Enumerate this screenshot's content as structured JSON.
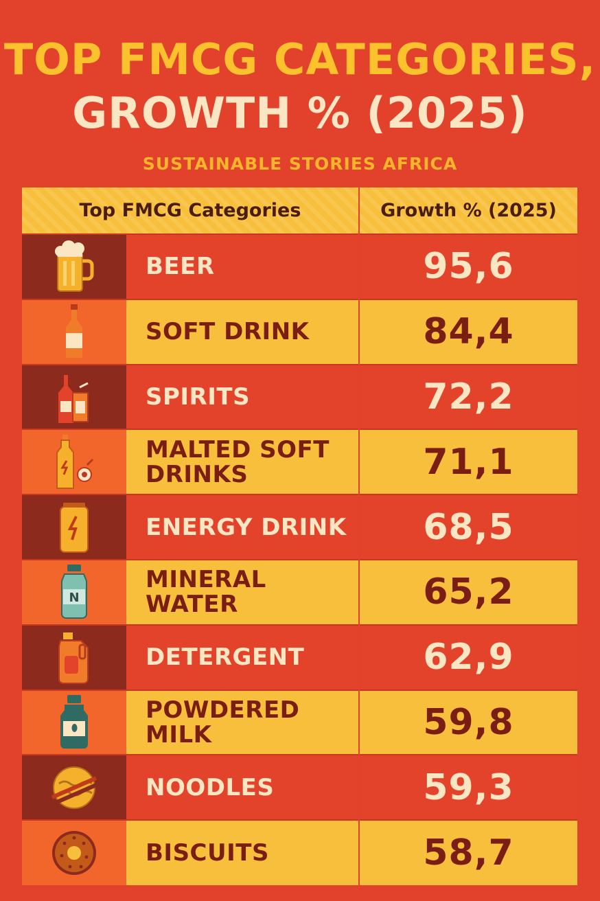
{
  "chart_data": {
    "type": "table",
    "title_line1": "TOP FMCG CATEGORIES,",
    "title_line2": "GROWTH % (2025)",
    "subtitle": "SUSTAINABLE STORIES AFRICA",
    "columns": [
      "Top FMCG Categories",
      "Growth % (2025)"
    ],
    "rows": [
      {
        "category": "BEER",
        "value": "95,6",
        "icon": "beer-mug-icon"
      },
      {
        "category": "SOFT DRINK",
        "value": "84,4",
        "icon": "bottle-icon"
      },
      {
        "category": "SPIRITS",
        "value": "72,2",
        "icon": "spirits-bottle-glass-icon"
      },
      {
        "category": "MALTED SOFT\nDRINKS",
        "value": "71,1",
        "icon": "malted-drink-bottle-icon"
      },
      {
        "category": "ENERGY DRINK",
        "value": "68,5",
        "icon": "energy-can-icon"
      },
      {
        "category": "MINERAL WATER",
        "value": "65,2",
        "icon": "water-bottle-icon"
      },
      {
        "category": "DETERGENT",
        "value": "62,9",
        "icon": "detergent-jug-icon"
      },
      {
        "category": "POWDERED\nMILK",
        "value": "59,8",
        "icon": "milk-powder-bottle-icon"
      },
      {
        "category": "NOODLES",
        "value": "59,3",
        "icon": "noodles-icon"
      },
      {
        "category": "BISCUITS",
        "value": "58,7",
        "icon": "biscuit-icon"
      }
    ]
  }
}
